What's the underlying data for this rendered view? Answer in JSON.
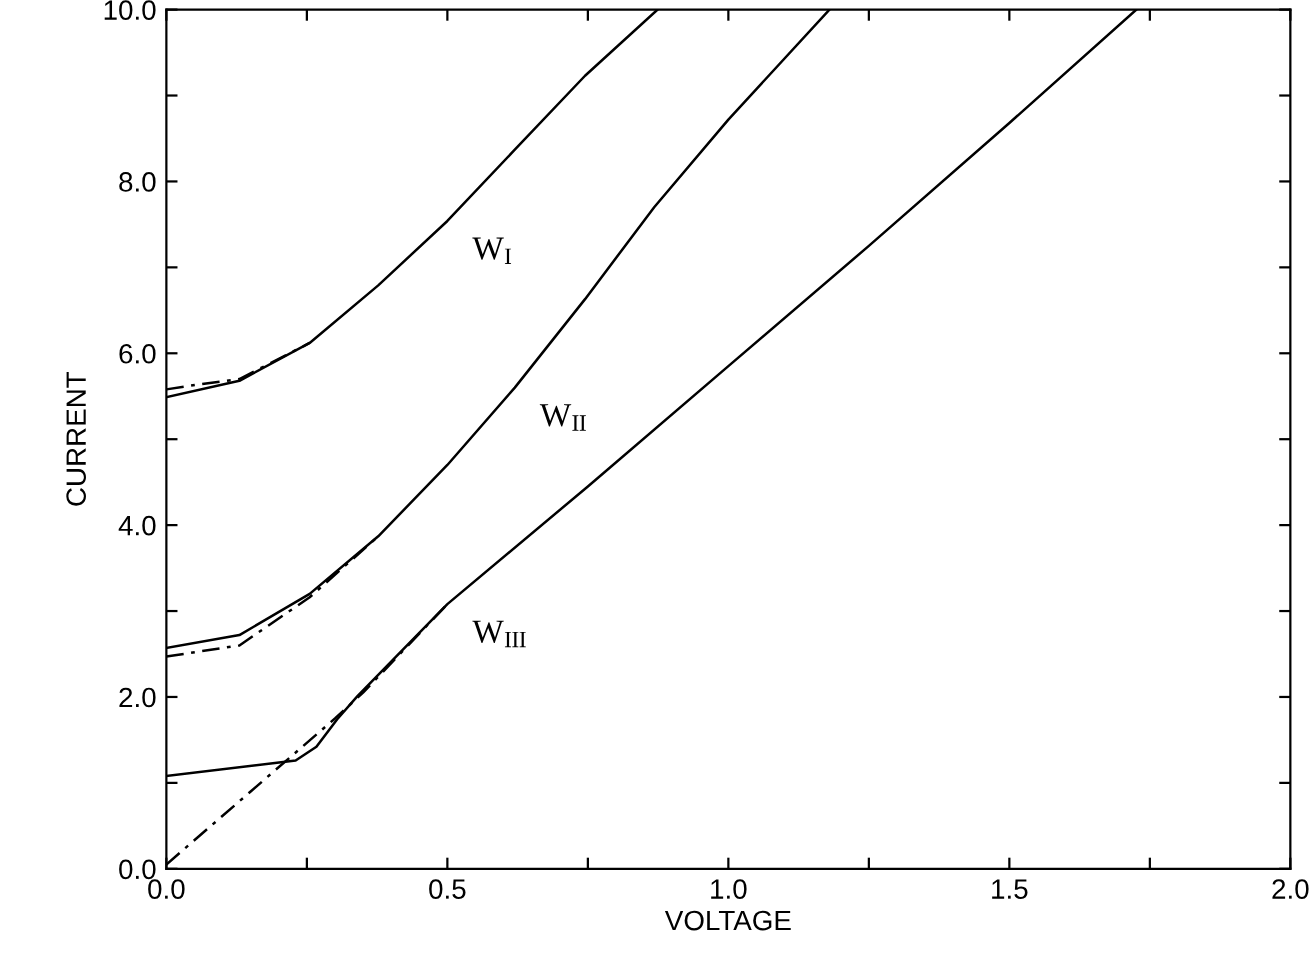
{
  "chart_data": {
    "type": "line",
    "xlabel": "VOLTAGE",
    "ylabel": "CURRENT",
    "xlim": [
      0,
      2
    ],
    "ylim": [
      0,
      10
    ],
    "xticks": [
      {
        "value": 0,
        "label": "0.0"
      },
      {
        "value": 0.25,
        "label": null
      },
      {
        "value": 0.5,
        "label": "0.5"
      },
      {
        "value": 0.75,
        "label": null
      },
      {
        "value": 1,
        "label": "1.0"
      },
      {
        "value": 1.25,
        "label": null
      },
      {
        "value": 1.5,
        "label": "1.5"
      },
      {
        "value": 1.75,
        "label": null
      },
      {
        "value": 2,
        "label": "2.0"
      }
    ],
    "yticks": [
      {
        "value": 0,
        "label": "0.0"
      },
      {
        "value": 1,
        "label": null
      },
      {
        "value": 2,
        "label": "2.0"
      },
      {
        "value": 3,
        "label": null
      },
      {
        "value": 4,
        "label": "4.0"
      },
      {
        "value": 5,
        "label": null
      },
      {
        "value": 6,
        "label": "6.0"
      },
      {
        "value": 7,
        "label": null
      },
      {
        "value": 8,
        "label": "8.0"
      },
      {
        "value": 9,
        "label": null
      },
      {
        "value": 10,
        "label": "10.0"
      }
    ],
    "grid": false,
    "legend": false,
    "marker": "none",
    "series": [
      {
        "name": "W$_{I}$",
        "color": "#000000",
        "line_style": "solid",
        "x": [
          0,
          0.13,
          0.255,
          0.377,
          0.5,
          0.62,
          0.745,
          0.874
        ],
        "values": [
          5.49,
          5.68,
          6.12,
          6.79,
          7.54,
          8.37,
          9.23,
          10.0
        ]
      },
      {
        "color": "#000000",
        "line_style": "dashed",
        "x": [
          0,
          0.06,
          0.13,
          0.255
        ],
        "values": [
          5.58,
          5.64,
          5.7,
          6.12
        ]
      },
      {
        "name": "W$_{II}$",
        "color": "#000000",
        "line_style": "solid",
        "x": [
          0,
          0.13,
          0.255,
          0.377,
          0.5,
          0.62,
          0.745,
          0.868,
          1.0,
          1.18
        ],
        "values": [
          2.57,
          2.72,
          3.2,
          3.87,
          4.7,
          5.6,
          6.63,
          7.7,
          8.72,
          10.0
        ]
      },
      {
        "color": "#000000",
        "line_style": "dashed",
        "x": [
          0,
          0.13,
          0.255,
          0.377
        ],
        "values": [
          2.47,
          2.6,
          3.16,
          3.87
        ]
      },
      {
        "name": "W$_{III}$",
        "color": "#000000",
        "line_style": "solid",
        "x": [
          0,
          0.23,
          0.267,
          0.304,
          0.34,
          0.5,
          0.75,
          1.0,
          1.25,
          1.5,
          1.726
        ],
        "values": [
          1.08,
          1.26,
          1.42,
          1.74,
          2.01,
          3.08,
          4.45,
          5.85,
          7.25,
          8.68,
          10.0
        ]
      },
      {
        "color": "#000000",
        "line_style": "dashed",
        "x": [
          0,
          0.15,
          0.3,
          0.35,
          0.5
        ],
        "values": [
          0.05,
          0.9,
          1.75,
          2.05,
          3.08
        ]
      }
    ]
  }
}
